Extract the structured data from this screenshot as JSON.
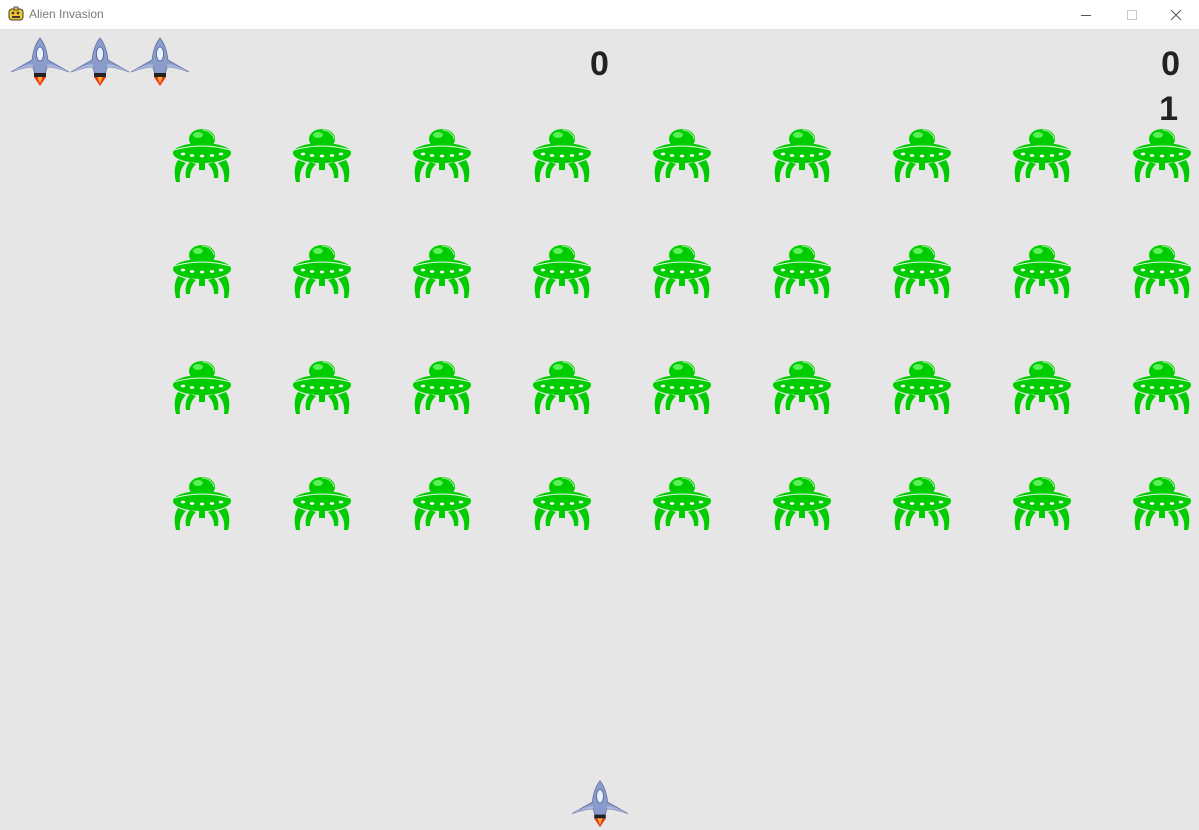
{
  "window": {
    "title": "Alien Invasion",
    "app_icon": "pygame-snake-icon",
    "controls": [
      "minimize-icon",
      "maximize-icon",
      "close-icon"
    ]
  },
  "hud": {
    "score": "0",
    "high_score": "0",
    "level": "1",
    "ships_left": 3
  },
  "fleet": {
    "rows": 4,
    "columns": 9,
    "alien_color": "#00cc00"
  },
  "colors": {
    "background": "#e6e6e6",
    "text": "#222222",
    "ship_body": "#8a9ccc",
    "ship_flame": "#e8321a"
  }
}
